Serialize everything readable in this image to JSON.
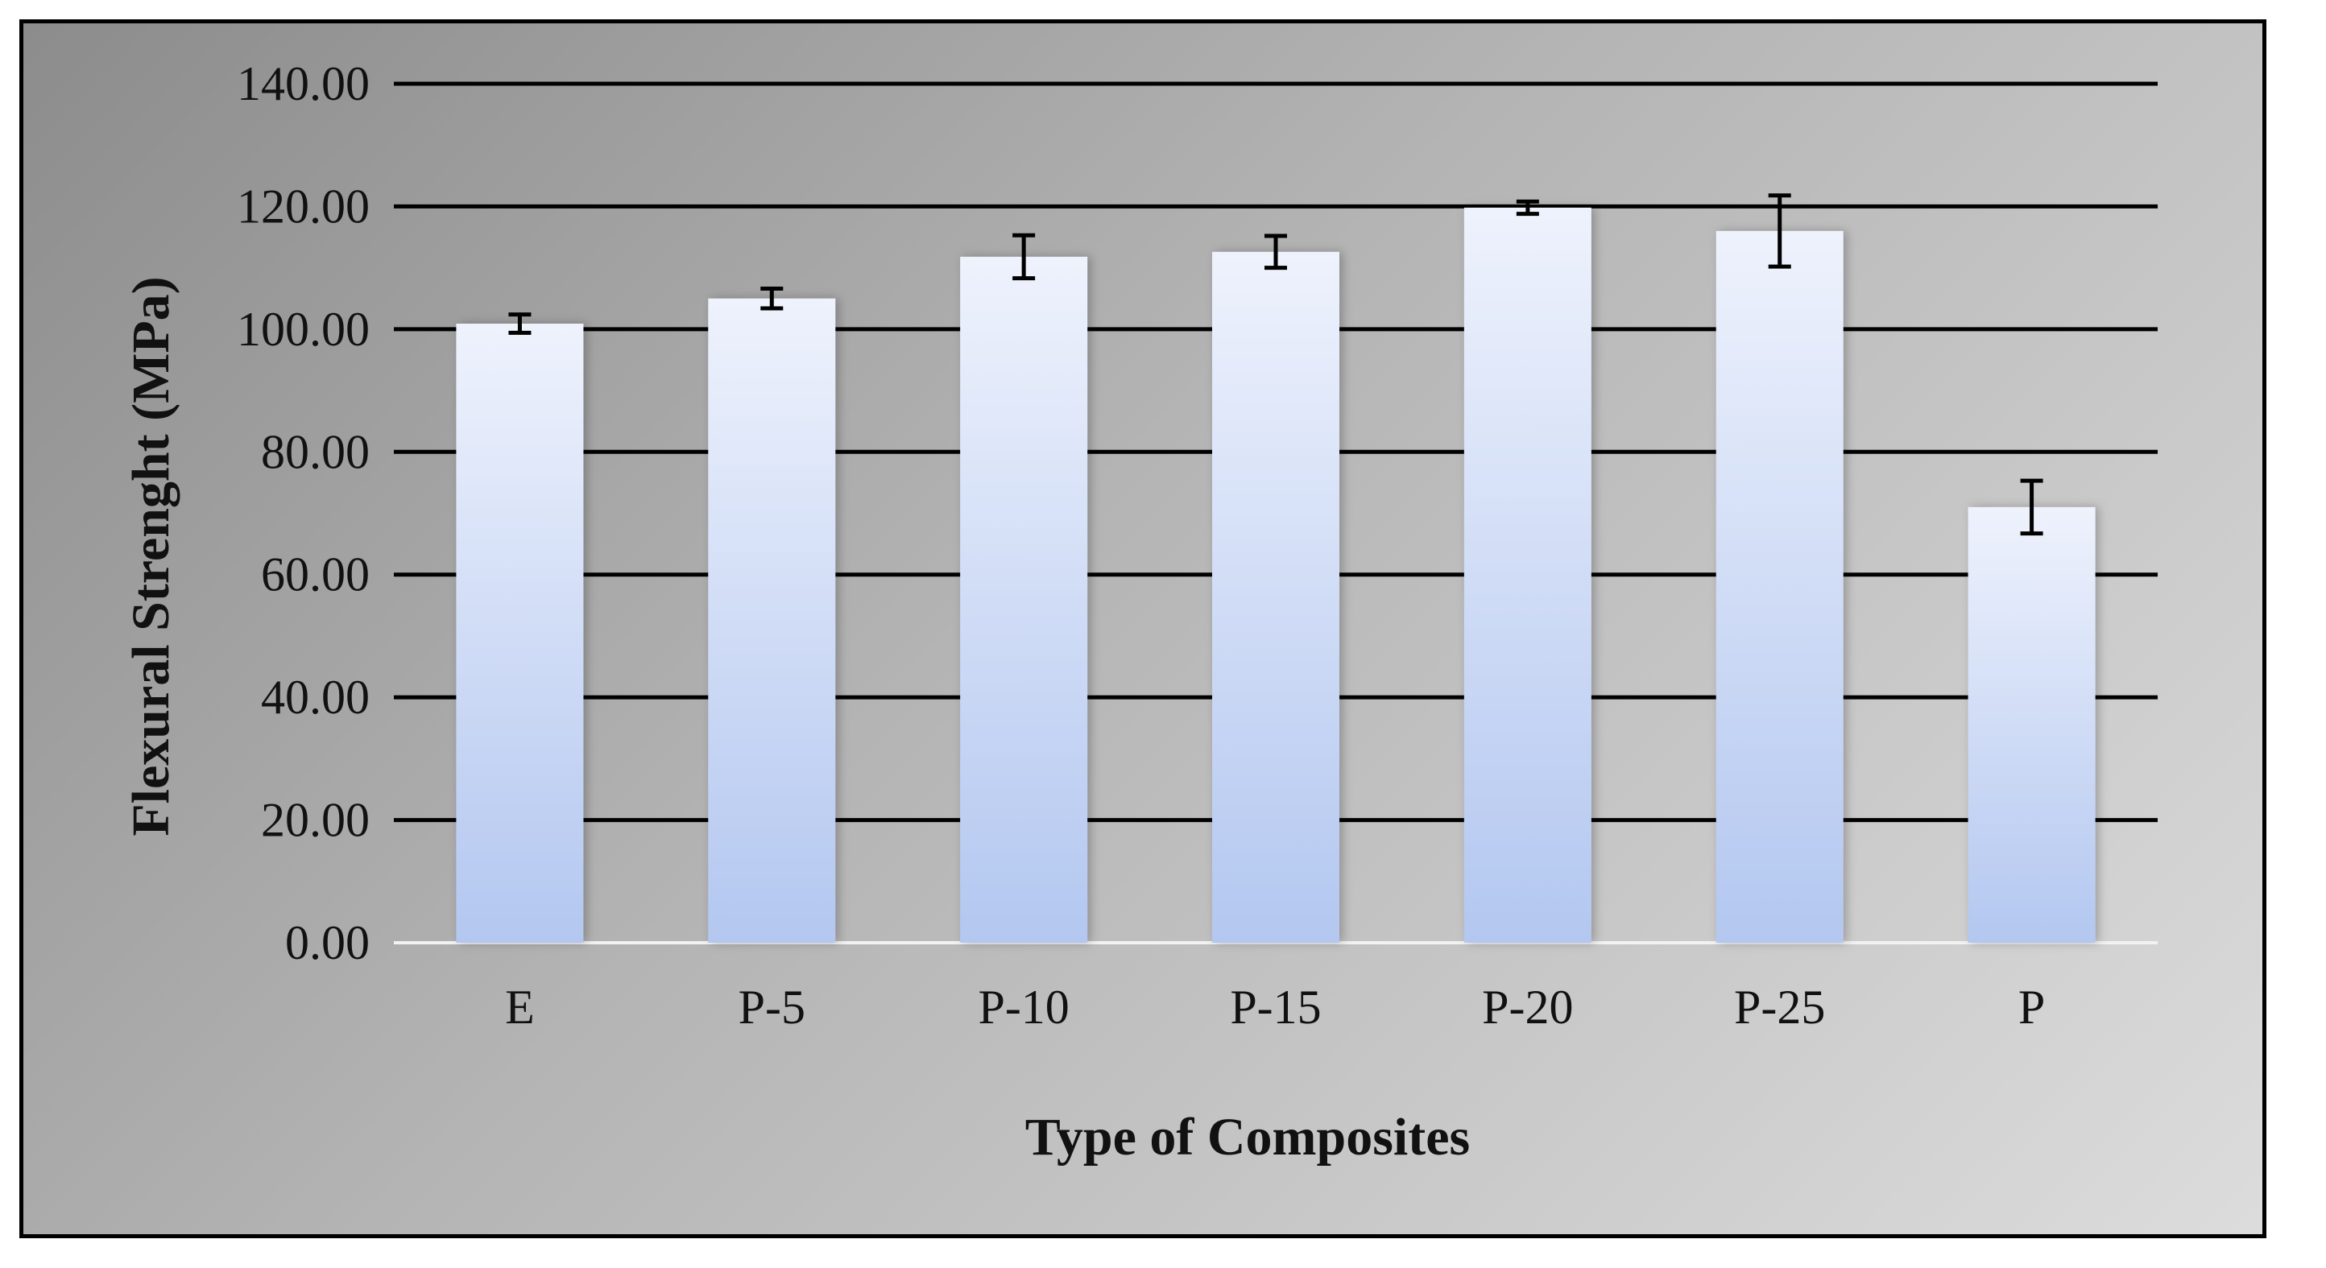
{
  "chart_data": {
    "type": "bar",
    "title": "",
    "xlabel": "Type of Composites",
    "ylabel": "Flexural Strenght (MPa)",
    "categories": [
      "E",
      "P-5",
      "P-10",
      "P-15",
      "P-20",
      "P-25",
      "P"
    ],
    "values": [
      100.9,
      105.0,
      111.8,
      112.6,
      119.8,
      116.0,
      71.0
    ],
    "error": [
      1.5,
      1.6,
      3.5,
      2.6,
      1.0,
      5.8,
      4.3
    ],
    "ylim": [
      0,
      140
    ],
    "yticks": [
      0,
      20,
      40,
      60,
      80,
      100,
      120,
      140
    ],
    "ytick_labels": [
      "0.00",
      "20.00",
      "40.00",
      "60.00",
      "80.00",
      "100.00",
      "120.00",
      "140.00"
    ],
    "grid": true,
    "legend": "none",
    "colors": {
      "bar_top": "#eef2fc",
      "bar_bottom": "#b3c7f0",
      "gridline": "#000000",
      "baseline": "#f2f2f2",
      "error_bar": "#000000"
    }
  }
}
